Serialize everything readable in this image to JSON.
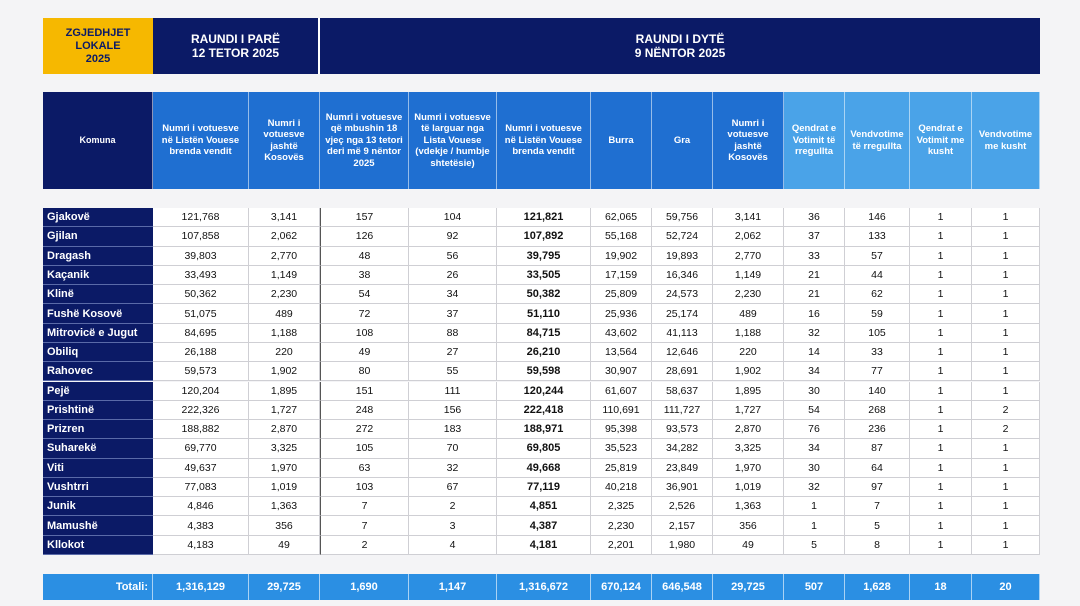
{
  "header": {
    "election": [
      "ZGJEDHJET",
      "LOKALE",
      "2025"
    ],
    "round1": {
      "title": "RAUNDI I PARË",
      "date": "12 TETOR 2025"
    },
    "round2": {
      "title": "RAUNDI I DYTË",
      "date": "9 NËNTOR 2025"
    }
  },
  "table": {
    "columns": [
      "Komuna",
      "Numri i votuesve në Listën Vouese brenda vendit",
      "Numri i votuesve jashtë Kosovës",
      "Numri i votuesve që mbushin 18 vjeç nga 13 tetori deri më 9 nëntor 2025",
      "Numri i votuesve të larguar nga Lista Vouese (vdekje / humbje shtetësie)",
      "Numri i votuesve në Listën Vouese brenda vendit",
      "Burra",
      "Gra",
      "Numri i votuesve jashtë Kosovës",
      "Qendrat e Votimit të rregullta",
      "Vendvotime të rregullta",
      "Qendrat e Votimit me kusht",
      "Vendvotime me kusht"
    ],
    "rows": [
      [
        "Gjakovë",
        "121,768",
        "3,141",
        "157",
        "104",
        "121,821",
        "62,065",
        "59,756",
        "3,141",
        "36",
        "146",
        "1",
        "1"
      ],
      [
        "Gjilan",
        "107,858",
        "2,062",
        "126",
        "92",
        "107,892",
        "55,168",
        "52,724",
        "2,062",
        "37",
        "133",
        "1",
        "1"
      ],
      [
        "Dragash",
        "39,803",
        "2,770",
        "48",
        "56",
        "39,795",
        "19,902",
        "19,893",
        "2,770",
        "33",
        "57",
        "1",
        "1"
      ],
      [
        "Kaçanik",
        "33,493",
        "1,149",
        "38",
        "26",
        "33,505",
        "17,159",
        "16,346",
        "1,149",
        "21",
        "44",
        "1",
        "1"
      ],
      [
        "Klinë",
        "50,362",
        "2,230",
        "54",
        "34",
        "50,382",
        "25,809",
        "24,573",
        "2,230",
        "21",
        "62",
        "1",
        "1"
      ],
      [
        "Fushë Kosovë",
        "51,075",
        "489",
        "72",
        "37",
        "51,110",
        "25,936",
        "25,174",
        "489",
        "16",
        "59",
        "1",
        "1"
      ],
      [
        "Mitrovicë e Jugut",
        "84,695",
        "1,188",
        "108",
        "88",
        "84,715",
        "43,602",
        "41,113",
        "1,188",
        "32",
        "105",
        "1",
        "1"
      ],
      [
        "Obiliq",
        "26,188",
        "220",
        "49",
        "27",
        "26,210",
        "13,564",
        "12,646",
        "220",
        "14",
        "33",
        "1",
        "1"
      ],
      [
        "Rahovec",
        "59,573",
        "1,902",
        "80",
        "55",
        "59,598",
        "30,907",
        "28,691",
        "1,902",
        "34",
        "77",
        "1",
        "1"
      ],
      [
        "Pejë",
        "120,204",
        "1,895",
        "151",
        "111",
        "120,244",
        "61,607",
        "58,637",
        "1,895",
        "30",
        "140",
        "1",
        "1"
      ],
      [
        "Prishtinë",
        "222,326",
        "1,727",
        "248",
        "156",
        "222,418",
        "110,691",
        "111,727",
        "1,727",
        "54",
        "268",
        "1",
        "2"
      ],
      [
        "Prizren",
        "188,882",
        "2,870",
        "272",
        "183",
        "188,971",
        "95,398",
        "93,573",
        "2,870",
        "76",
        "236",
        "1",
        "2"
      ],
      [
        "Suharekë",
        "69,770",
        "3,325",
        "105",
        "70",
        "69,805",
        "35,523",
        "34,282",
        "3,325",
        "34",
        "87",
        "1",
        "1"
      ],
      [
        "Viti",
        "49,637",
        "1,970",
        "63",
        "32",
        "49,668",
        "25,819",
        "23,849",
        "1,970",
        "30",
        "64",
        "1",
        "1"
      ],
      [
        "Vushtrri",
        "77,083",
        "1,019",
        "103",
        "67",
        "77,119",
        "40,218",
        "36,901",
        "1,019",
        "32",
        "97",
        "1",
        "1"
      ],
      [
        "Junik",
        "4,846",
        "1,363",
        "7",
        "2",
        "4,851",
        "2,325",
        "2,526",
        "1,363",
        "1",
        "7",
        "1",
        "1"
      ],
      [
        "Mamushë",
        "4,383",
        "356",
        "7",
        "3",
        "4,387",
        "2,230",
        "2,157",
        "356",
        "1",
        "5",
        "1",
        "1"
      ],
      [
        "Kllokot",
        "4,183",
        "49",
        "2",
        "4",
        "4,181",
        "2,201",
        "1,980",
        "49",
        "5",
        "8",
        "1",
        "1"
      ]
    ],
    "totals": [
      "Totali:",
      "1,316,129",
      "29,725",
      "1,690",
      "1,147",
      "1,316,672",
      "670,124",
      "646,548",
      "29,725",
      "507",
      "1,628",
      "18",
      "20"
    ]
  }
}
